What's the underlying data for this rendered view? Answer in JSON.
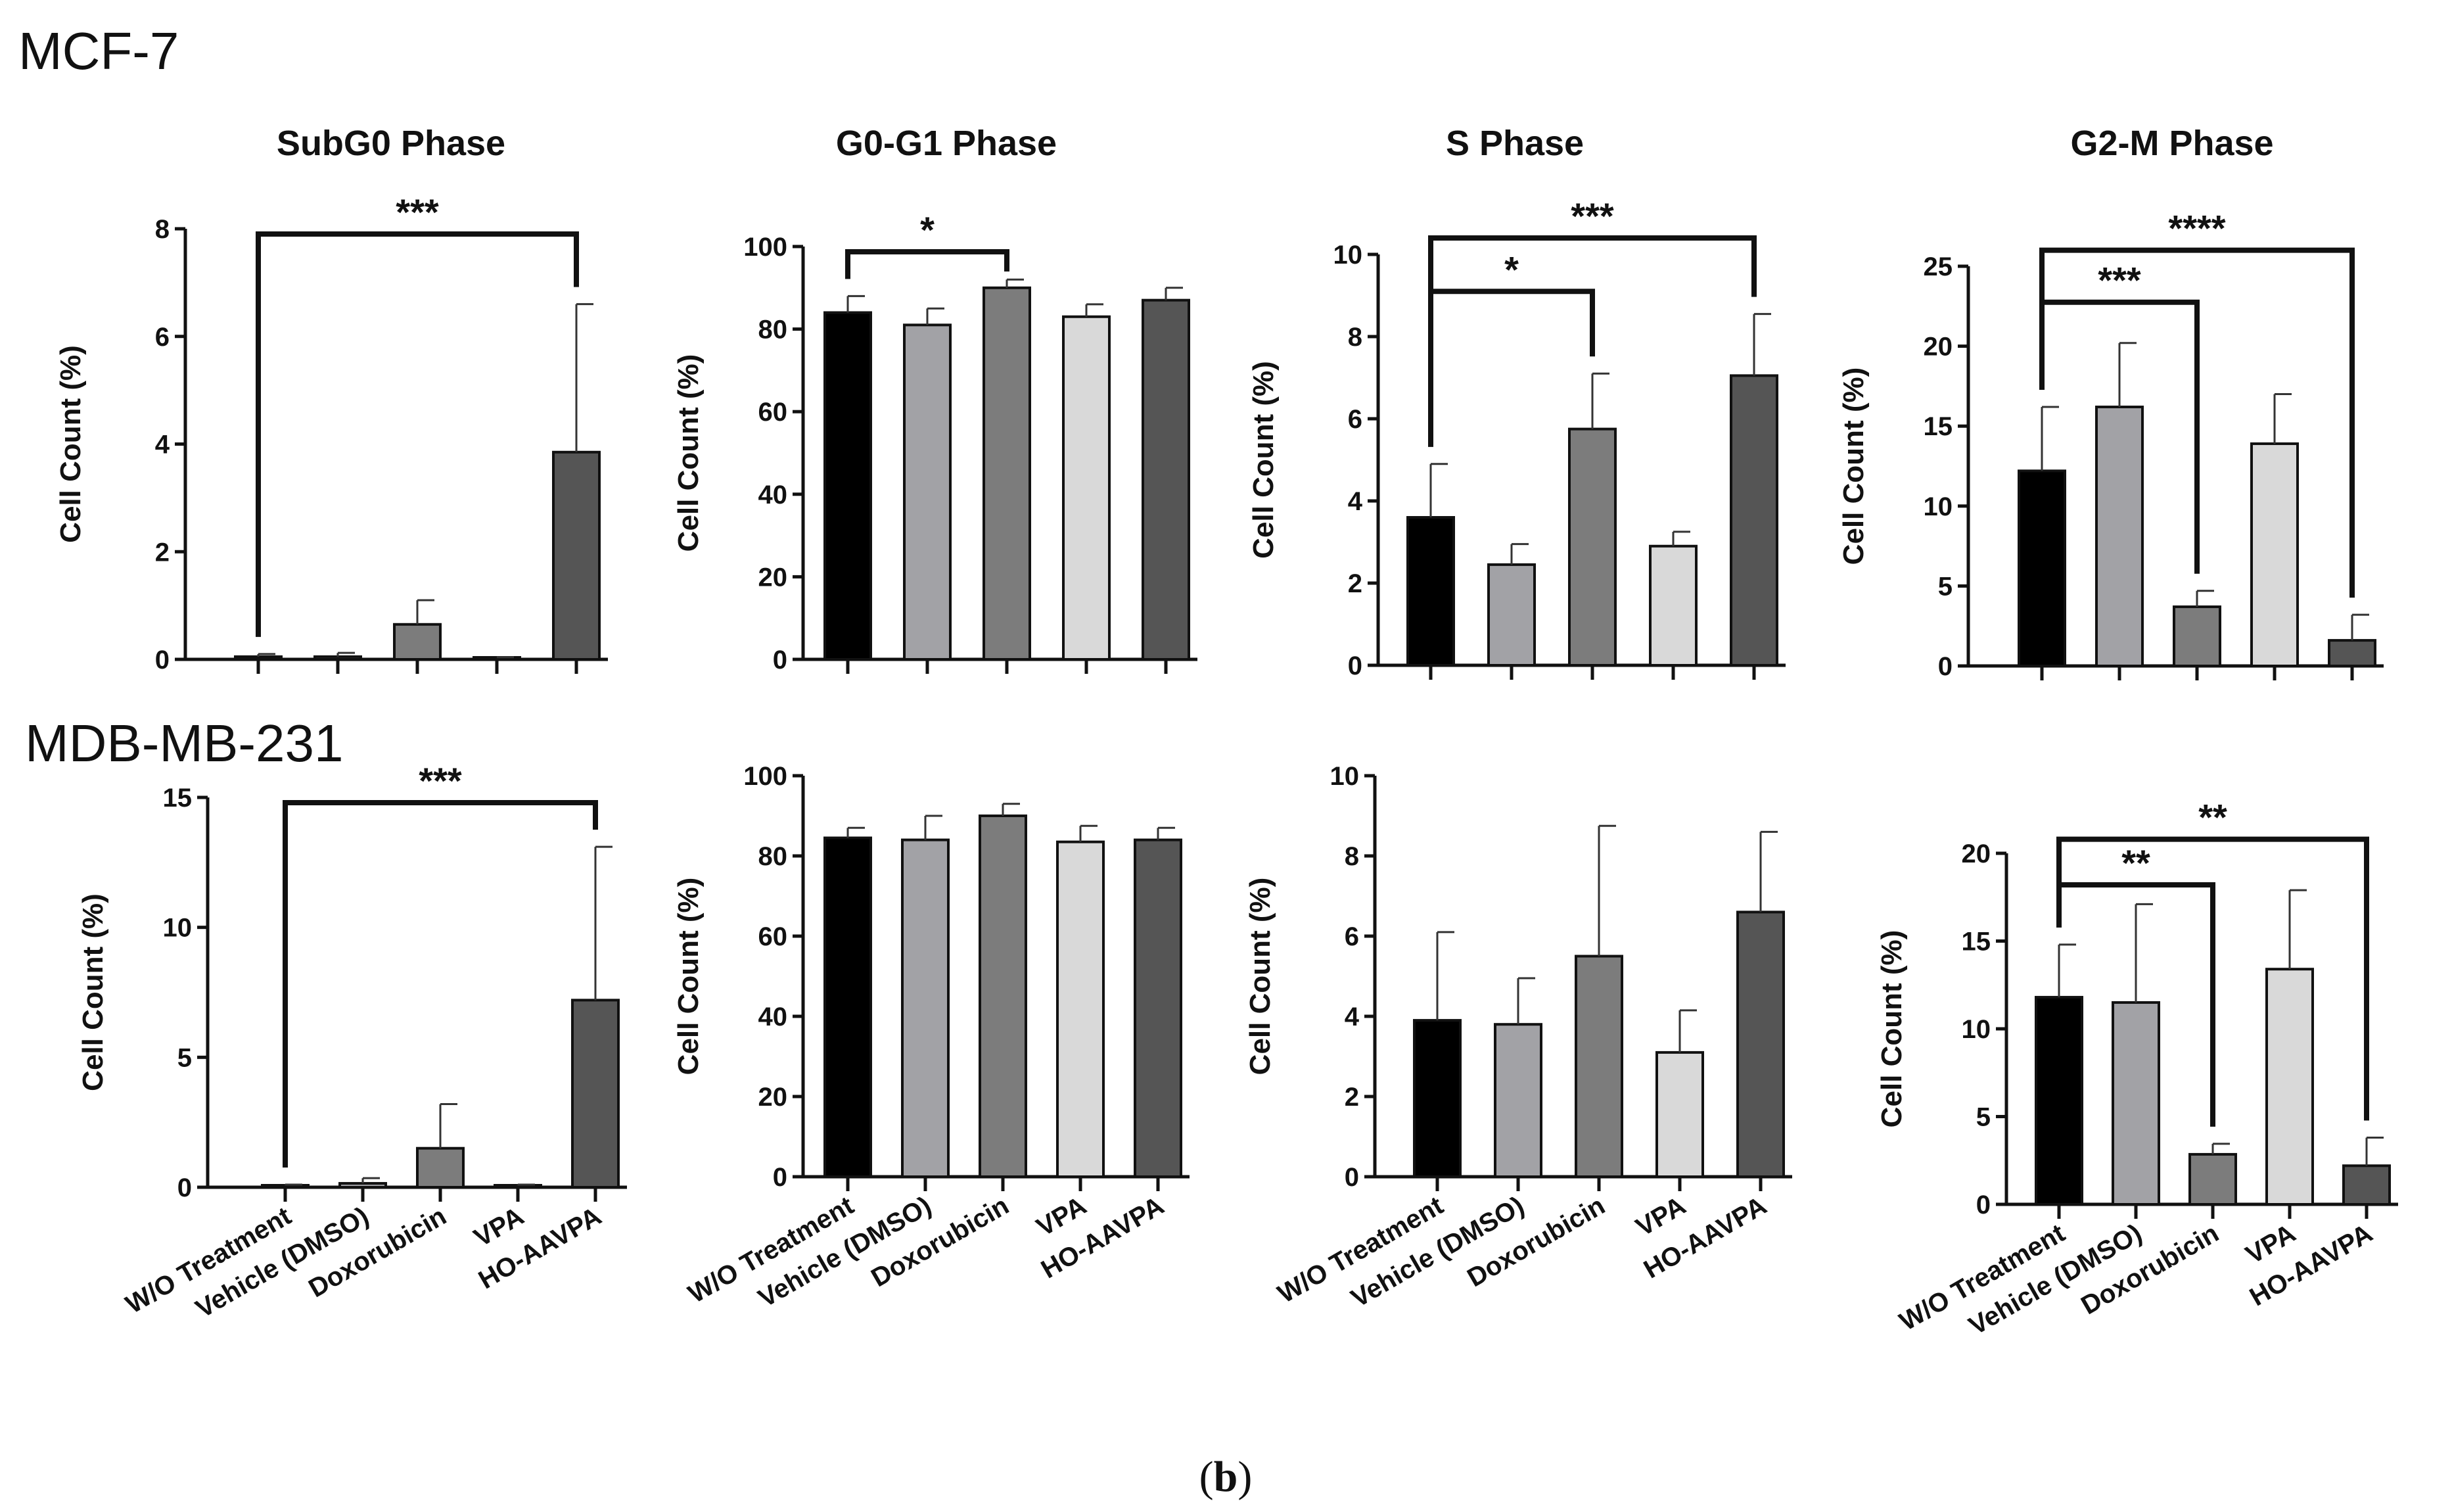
{
  "row_labels": [
    "MCF-7",
    "MDB-MB-231"
  ],
  "caption": {
    "open": "(",
    "letter": "b",
    "close": ")"
  },
  "colors": {
    "W/O Treatment": "#000000",
    "Vehicle (DMSO)": "#a2a2a6",
    "Doxorubicin": "#7c7c7c",
    "VPA": "#d9d9d9",
    "HO-AAVPA": "#555555"
  },
  "chart_data": [
    {
      "type": "bar",
      "row": 0,
      "col": 0,
      "title": "SubG0 Phase",
      "ylabel": "Cell  Count (%)",
      "categories": [
        "W/O Treatment",
        "Vehicle (DMSO)",
        "Doxorubicin",
        "VPA",
        "HO-AAVPA"
      ],
      "values": [
        0.05,
        0.05,
        0.65,
        0.02,
        3.85
      ],
      "errors": [
        0.05,
        0.07,
        0.45,
        0.02,
        2.75
      ],
      "ylim": [
        0,
        8
      ],
      "yticks": [
        0,
        2,
        4,
        6,
        8
      ],
      "show_xlabels": false,
      "significance": [
        {
          "from": 0,
          "to": 4,
          "level": 0,
          "label": "***"
        }
      ]
    },
    {
      "type": "bar",
      "row": 0,
      "col": 1,
      "title": "G0-G1 Phase",
      "ylabel": "Cell  Count (%)",
      "categories": [
        "W/O Treatment",
        "Vehicle (DMSO)",
        "Doxorubicin",
        "VPA",
        "HO-AAVPA"
      ],
      "values": [
        84,
        81,
        90,
        83,
        87
      ],
      "errors": [
        4,
        4,
        2,
        3,
        3
      ],
      "ylim": [
        0,
        100
      ],
      "yticks": [
        0,
        20,
        40,
        60,
        80,
        100
      ],
      "show_xlabels": false,
      "significance": [
        {
          "from": 0,
          "to": 2,
          "level": 0,
          "label": "*"
        }
      ]
    },
    {
      "type": "bar",
      "row": 0,
      "col": 2,
      "title": "S Phase",
      "ylabel": "Cell  Count (%)",
      "categories": [
        "W/O Treatment",
        "Vehicle (DMSO)",
        "Doxorubicin",
        "VPA",
        "HO-AAVPA"
      ],
      "values": [
        3.6,
        2.45,
        5.75,
        2.9,
        7.05
      ],
      "errors": [
        1.3,
        0.5,
        1.35,
        0.35,
        1.5
      ],
      "ylim": [
        0,
        10
      ],
      "yticks": [
        0,
        2,
        4,
        6,
        8,
        10
      ],
      "show_xlabels": false,
      "significance": [
        {
          "from": 0,
          "to": 2,
          "level": 0,
          "label": "*"
        },
        {
          "from": 0,
          "to": 4,
          "level": 1,
          "label": "***"
        }
      ]
    },
    {
      "type": "bar",
      "row": 0,
      "col": 3,
      "title": "G2-M Phase",
      "ylabel": "Cell  Count (%)",
      "categories": [
        "W/O Treatment",
        "Vehicle (DMSO)",
        "Doxorubicin",
        "VPA",
        "HO-AAVPA"
      ],
      "values": [
        12.2,
        16.2,
        3.7,
        13.9,
        1.6
      ],
      "errors": [
        4.0,
        4.0,
        1.0,
        3.1,
        1.6
      ],
      "ylim": [
        0,
        25
      ],
      "yticks": [
        0,
        5,
        10,
        15,
        20,
        25
      ],
      "show_xlabels": false,
      "significance": [
        {
          "from": 0,
          "to": 2,
          "level": 0,
          "label": "***"
        },
        {
          "from": 0,
          "to": 4,
          "level": 1,
          "label": "****"
        }
      ]
    },
    {
      "type": "bar",
      "row": 1,
      "col": 0,
      "title": "",
      "ylabel": "Cell  Count (%)",
      "categories": [
        "W/O Treatment",
        "Vehicle (DMSO)",
        "Doxorubicin",
        "VPA",
        "HO-AAVPA"
      ],
      "values": [
        0.05,
        0.15,
        1.5,
        0.05,
        7.2
      ],
      "errors": [
        0.05,
        0.2,
        1.7,
        0.05,
        5.9
      ],
      "ylim": [
        0,
        15
      ],
      "yticks": [
        0,
        5,
        10,
        15
      ],
      "show_xlabels": true,
      "significance": [
        {
          "from": 0,
          "to": 4,
          "level": 0,
          "label": "***"
        }
      ]
    },
    {
      "type": "bar",
      "row": 1,
      "col": 1,
      "title": "",
      "ylabel": "Cell  Count (%)",
      "categories": [
        "W/O Treatment",
        "Vehicle (DMSO)",
        "Doxorubicin",
        "VPA",
        "HO-AAVPA"
      ],
      "values": [
        84.5,
        84,
        90,
        83.5,
        84
      ],
      "errors": [
        2.5,
        6,
        3,
        4,
        3
      ],
      "ylim": [
        0,
        100
      ],
      "yticks": [
        0,
        20,
        40,
        60,
        80,
        100
      ],
      "show_xlabels": true,
      "significance": []
    },
    {
      "type": "bar",
      "row": 1,
      "col": 2,
      "title": "",
      "ylabel": "Cell  Count (%)",
      "categories": [
        "W/O Treatment",
        "Vehicle (DMSO)",
        "Doxorubicin",
        "VPA",
        "HO-AAVPA"
      ],
      "values": [
        3.9,
        3.8,
        5.5,
        3.1,
        6.6
      ],
      "errors": [
        2.2,
        1.15,
        3.25,
        1.05,
        2.0
      ],
      "ylim": [
        0,
        10
      ],
      "yticks": [
        0,
        2,
        4,
        6,
        8,
        10
      ],
      "show_xlabels": true,
      "significance": []
    },
    {
      "type": "bar",
      "row": 1,
      "col": 3,
      "title": "",
      "ylabel": "Cell  Count (%)",
      "categories": [
        "W/O Treatment",
        "Vehicle (DMSO)",
        "Doxorubicin",
        "VPA",
        "HO-AAVPA"
      ],
      "values": [
        11.8,
        11.5,
        2.85,
        13.4,
        2.2
      ],
      "errors": [
        3.0,
        5.6,
        0.6,
        4.5,
        1.6
      ],
      "ylim": [
        0,
        20
      ],
      "yticks": [
        0,
        5,
        10,
        15,
        20
      ],
      "show_xlabels": true,
      "significance": [
        {
          "from": 0,
          "to": 2,
          "level": 0,
          "label": "**"
        },
        {
          "from": 0,
          "to": 4,
          "level": 1,
          "label": "**"
        }
      ]
    }
  ]
}
